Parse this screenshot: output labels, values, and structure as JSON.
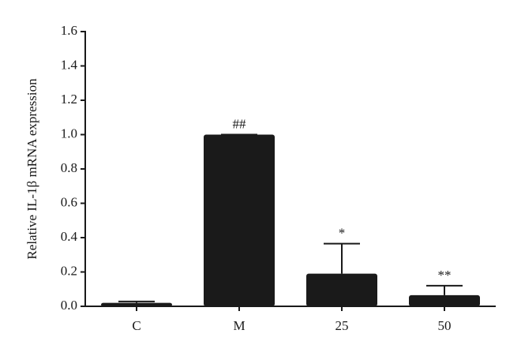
{
  "chart_data": {
    "type": "bar",
    "y_label": "Relative IL-1β mRNA expression",
    "categories": [
      "C",
      "M",
      "25",
      "50"
    ],
    "values": [
      0.02,
      1.0,
      0.19,
      0.065
    ],
    "errors": [
      0.008,
      0.0,
      0.175,
      0.055
    ],
    "annotations": [
      null,
      "##",
      "*",
      "**"
    ],
    "color": "#1a1a1a",
    "ylim": [
      0,
      1.6
    ],
    "yticks": [
      {
        "value": 0,
        "label": "0.0"
      },
      0.2,
      0.4,
      0.6,
      0.8,
      {
        "value": 1,
        "label": "1.0"
      },
      1.2,
      1.4,
      1.6
    ]
  }
}
